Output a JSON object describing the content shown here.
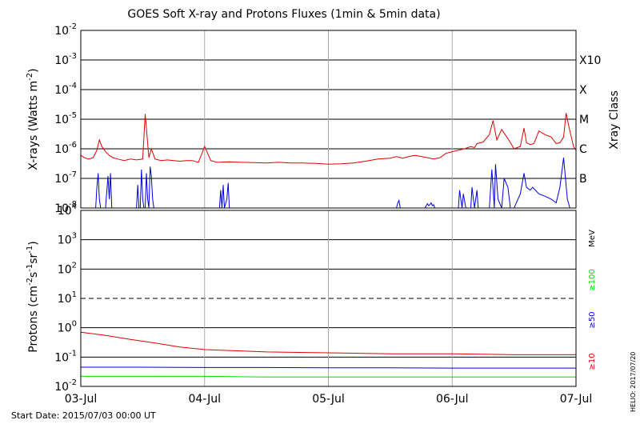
{
  "chart_data": [
    {
      "type": "line",
      "title": "GOES Soft X-ray and Protons Fluxes   (1min & 5min data)",
      "ylabel": "X-rays (Watts m^-2)",
      "ylabel_parts": {
        "main": "X-rays (Watts m",
        "sup": "-2",
        "close": ")"
      },
      "yscale": "log",
      "ylim": [
        1e-08,
        0.01
      ],
      "ytick_labels": [
        {
          "base": "10",
          "exp": "-8"
        },
        {
          "base": "10",
          "exp": "-7"
        },
        {
          "base": "10",
          "exp": "-6"
        },
        {
          "base": "10",
          "exp": "-5"
        },
        {
          "base": "10",
          "exp": "-4"
        },
        {
          "base": "10",
          "exp": "-3"
        },
        {
          "base": "10",
          "exp": "-2"
        }
      ],
      "right_axis_title": "Xray Class",
      "flare_classes": [
        {
          "label": "B",
          "value": 1e-07
        },
        {
          "label": "C",
          "value": 1e-06
        },
        {
          "label": "M",
          "value": 1e-05
        },
        {
          "label": "X",
          "value": 0.0001
        },
        {
          "label": "X10",
          "value": 0.001
        }
      ],
      "grid": true,
      "series": [
        {
          "color": "#e00000",
          "x": [
            0,
            0.03,
            0.06,
            0.1,
            0.13,
            0.15,
            0.17,
            0.2,
            0.23,
            0.26,
            0.3,
            0.35,
            0.4,
            0.45,
            0.5,
            0.52,
            0.55,
            0.57,
            0.6,
            0.65,
            0.7,
            0.75,
            0.8,
            0.85,
            0.9,
            0.95,
            1.0,
            1.05,
            1.1,
            1.2,
            1.3,
            1.4,
            1.5,
            1.6,
            1.7,
            1.8,
            1.9,
            2.0,
            2.1,
            2.2,
            2.3,
            2.4,
            2.5,
            2.55,
            2.6,
            2.65,
            2.7,
            2.75,
            2.8,
            2.85,
            2.9,
            2.95,
            3.0,
            3.05,
            3.1,
            3.15,
            3.18,
            3.2,
            3.25,
            3.3,
            3.33,
            3.36,
            3.4,
            3.45,
            3.5,
            3.55,
            3.58,
            3.6,
            3.63,
            3.66,
            3.7,
            3.75,
            3.8,
            3.84,
            3.87,
            3.9,
            3.92,
            3.95,
            3.98,
            4.0
          ],
          "values": [
            6e-07,
            5e-07,
            4.5e-07,
            5e-07,
            9e-07,
            2e-06,
            1.2e-06,
            8e-07,
            6e-07,
            5e-07,
            4.5e-07,
            4e-07,
            4.5e-07,
            4.2e-07,
            4.5e-07,
            1.5e-05,
            5e-07,
            1e-06,
            4.5e-07,
            4e-07,
            4.2e-07,
            4e-07,
            3.8e-07,
            4e-07,
            4e-07,
            3.5e-07,
            1.2e-06,
            4e-07,
            3.5e-07,
            3.6e-07,
            3.5e-07,
            3.4e-07,
            3.3e-07,
            3.5e-07,
            3.3e-07,
            3.3e-07,
            3.2e-07,
            3e-07,
            3.1e-07,
            3.3e-07,
            3.8e-07,
            4.5e-07,
            4.8e-07,
            5.5e-07,
            4.8e-07,
            5.5e-07,
            6e-07,
            5.5e-07,
            5e-07,
            4.5e-07,
            5e-07,
            7e-07,
            8e-07,
            9e-07,
            1e-06,
            1.2e-06,
            1.1e-06,
            1.5e-06,
            1.7e-06,
            3e-06,
            9e-06,
            2e-06,
            4.5e-06,
            2.2e-06,
            1e-06,
            1.2e-06,
            5e-06,
            1.6e-06,
            1.4e-06,
            1.5e-06,
            4e-06,
            3e-06,
            2.5e-06,
            1.5e-06,
            1.6e-06,
            2.5e-06,
            1.6e-05,
            4e-06,
            1.2e-06,
            9e-07
          ]
        },
        {
          "color": "#0000e0",
          "x": [
            0.1,
            0.12,
            0.13,
            0.14,
            0.15,
            0.16,
            0.2,
            0.22,
            0.23,
            0.24,
            0.25,
            0.45,
            0.46,
            0.47,
            0.48,
            0.49,
            0.5,
            0.51,
            0.52,
            0.53,
            0.54,
            0.55,
            0.56,
            0.57,
            0.58,
            0.59,
            1.12,
            1.13,
            1.14,
            1.15,
            1.16,
            1.18,
            1.19,
            1.2,
            2.55,
            2.56,
            2.57,
            2.58,
            2.78,
            2.79,
            2.8,
            2.81,
            2.82,
            2.83,
            2.84,
            2.85,
            2.86,
            3.05,
            3.06,
            3.08,
            3.09,
            3.11,
            3.15,
            3.16,
            3.18,
            3.2,
            3.21,
            3.23,
            3.3,
            3.32,
            3.34,
            3.35,
            3.37,
            3.4,
            3.42,
            3.45,
            3.47,
            3.5,
            3.55,
            3.58,
            3.6,
            3.63,
            3.65,
            3.7,
            3.75,
            3.8,
            3.84,
            3.87,
            3.9,
            3.93,
            3.95,
            3.98
          ],
          "values": [
            1e-08,
            1e-08,
            5e-08,
            1.5e-07,
            2e-08,
            1e-08,
            1e-08,
            1.2e-07,
            2e-08,
            1.5e-07,
            1e-08,
            1e-08,
            6e-08,
            1e-08,
            1e-08,
            2e-07,
            2e-08,
            1e-08,
            1e-08,
            1.5e-07,
            2e-08,
            1e-08,
            2.5e-07,
            1.2e-07,
            2e-08,
            1e-08,
            1e-08,
            4e-08,
            1e-08,
            6e-08,
            1e-08,
            2e-08,
            7e-08,
            1e-08,
            1e-08,
            1.5e-08,
            1.8e-08,
            1e-08,
            1e-08,
            1.2e-08,
            1.4e-08,
            1.2e-08,
            1.3e-08,
            1.5e-08,
            1.2e-08,
            1.3e-08,
            1e-08,
            1e-08,
            4e-08,
            1e-08,
            3e-08,
            1e-08,
            1e-08,
            5e-08,
            1e-08,
            4e-08,
            1e-08,
            1e-08,
            1e-08,
            2e-07,
            1e-08,
            3e-07,
            2e-08,
            1e-08,
            1e-07,
            5e-08,
            1e-08,
            1e-08,
            3e-08,
            1.5e-07,
            5e-08,
            4e-08,
            5e-08,
            3e-08,
            2.5e-08,
            2e-08,
            1.5e-08,
            5e-08,
            5e-07,
            2e-08,
            1e-08,
            1e-08
          ]
        }
      ]
    },
    {
      "type": "line",
      "ylabel": "Protons (cm^-2 s^-1 sr^-1)",
      "ylabel_parts": {
        "a": "Protons (cm",
        "s1": "-2",
        "b": "s",
        "s2": "-1",
        "c": "sr",
        "s3": "-1",
        "d": ")"
      },
      "yscale": "log",
      "ylim": [
        0.01,
        10000
      ],
      "ytick_labels": [
        {
          "base": "10",
          "exp": "-2"
        },
        {
          "base": "10",
          "exp": "-1"
        },
        {
          "base": "10",
          "exp": "0"
        },
        {
          "base": "10",
          "exp": "1"
        },
        {
          "base": "10",
          "exp": "2"
        },
        {
          "base": "10",
          "exp": "3"
        },
        {
          "base": "10",
          "exp": "4"
        }
      ],
      "right_axis_unit": "MeV",
      "threshold_line": 10,
      "grid": true,
      "xticks": [
        "03-Jul",
        "04-Jul",
        "05-Jul",
        "06-Jul",
        "07-Jul"
      ],
      "legend": [
        {
          "label": "≥100",
          "color": "#00dd00"
        },
        {
          "label": "≥50",
          "color": "#0000e0"
        },
        {
          "label": "≥10",
          "color": "#e00000"
        }
      ],
      "series": [
        {
          "name": "≥10",
          "color": "#e00000",
          "x": [
            0,
            0.2,
            0.4,
            0.6,
            0.8,
            1.0,
            1.5,
            2.0,
            2.5,
            3.0,
            3.5,
            4.0
          ],
          "values": [
            0.7,
            0.55,
            0.4,
            0.3,
            0.22,
            0.18,
            0.15,
            0.14,
            0.13,
            0.13,
            0.12,
            0.12
          ]
        },
        {
          "name": "≥50",
          "color": "#0000e0",
          "x": [
            0,
            0.5,
            1.0,
            1.5,
            2.0,
            2.5,
            3.0,
            3.5,
            4.0
          ],
          "values": [
            0.045,
            0.045,
            0.044,
            0.044,
            0.043,
            0.043,
            0.042,
            0.042,
            0.042
          ]
        },
        {
          "name": "≥100",
          "color": "#00dd00",
          "x": [
            0,
            0.5,
            1.0,
            1.5,
            2.0,
            2.5,
            3.0,
            3.5,
            4.0
          ],
          "values": [
            0.022,
            0.022,
            0.022,
            0.021,
            0.021,
            0.021,
            0.021,
            0.021,
            0.021
          ]
        }
      ]
    }
  ],
  "footer": {
    "start_date": "Start Date: 2015/07/03 00:00 UT",
    "credit": "HELIO: 2017/07/20"
  }
}
